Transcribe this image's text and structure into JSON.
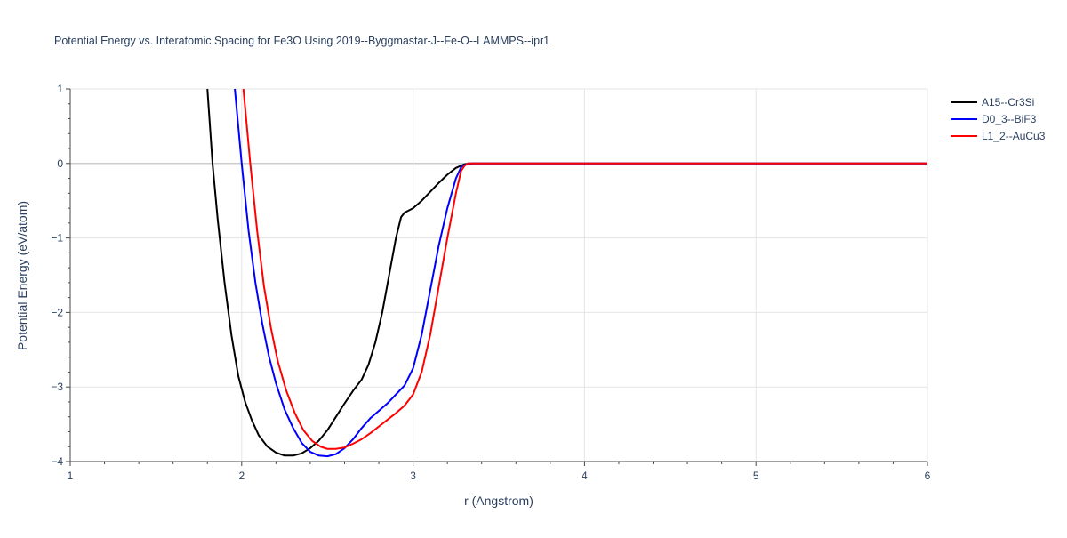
{
  "chart_data": {
    "type": "line",
    "title": "Potential Energy vs. Interatomic Spacing for Fe3O Using 2019--Byggmastar-J--Fe-O--LAMMPS--ipr1",
    "xlabel": "r (Angstrom)",
    "ylabel": "Potential Energy (eV/atom)",
    "xlim": [
      1,
      6
    ],
    "ylim": [
      -4,
      1
    ],
    "xticks": [
      1,
      2,
      3,
      4,
      5,
      6
    ],
    "yticks": [
      -4,
      -3,
      -2,
      -1,
      0,
      1
    ],
    "xtick_labels": [
      "1",
      "2",
      "3",
      "4",
      "5",
      "6"
    ],
    "ytick_labels": [
      "−4",
      "−3",
      "−2",
      "−1",
      "0",
      "1"
    ],
    "grid": true,
    "legend_position": "top-right",
    "series": [
      {
        "name": "A15--Cr3Si",
        "color": "#000000",
        "x": [
          1.8,
          1.83,
          1.86,
          1.9,
          1.94,
          1.98,
          2.02,
          2.06,
          2.1,
          2.15,
          2.2,
          2.25,
          2.3,
          2.35,
          2.4,
          2.45,
          2.5,
          2.55,
          2.6,
          2.65,
          2.7,
          2.74,
          2.78,
          2.82,
          2.86,
          2.9,
          2.93,
          2.95,
          3.0,
          3.05,
          3.1,
          3.15,
          3.2,
          3.25,
          3.3,
          3.35,
          3.4,
          4.0,
          5.0,
          6.0
        ],
        "y": [
          1.0,
          0.0,
          -0.75,
          -1.6,
          -2.3,
          -2.85,
          -3.2,
          -3.45,
          -3.65,
          -3.8,
          -3.88,
          -3.92,
          -3.92,
          -3.89,
          -3.82,
          -3.72,
          -3.58,
          -3.4,
          -3.22,
          -3.05,
          -2.9,
          -2.7,
          -2.4,
          -2.0,
          -1.5,
          -1.0,
          -0.72,
          -0.66,
          -0.6,
          -0.5,
          -0.38,
          -0.26,
          -0.15,
          -0.06,
          -0.01,
          0.0,
          0.0,
          0.0,
          0.0,
          0.0
        ]
      },
      {
        "name": "D0_3--BiF3",
        "color": "#0000ff",
        "x": [
          1.96,
          2.0,
          2.04,
          2.08,
          2.12,
          2.16,
          2.2,
          2.25,
          2.3,
          2.35,
          2.4,
          2.45,
          2.5,
          2.55,
          2.6,
          2.65,
          2.7,
          2.75,
          2.8,
          2.85,
          2.9,
          2.95,
          3.0,
          3.05,
          3.1,
          3.15,
          3.2,
          3.25,
          3.28,
          3.3,
          3.32,
          3.35,
          4.0,
          5.0,
          6.0
        ],
        "y": [
          1.0,
          0.0,
          -0.9,
          -1.6,
          -2.15,
          -2.6,
          -2.95,
          -3.3,
          -3.55,
          -3.75,
          -3.87,
          -3.92,
          -3.93,
          -3.9,
          -3.82,
          -3.7,
          -3.55,
          -3.42,
          -3.32,
          -3.22,
          -3.1,
          -2.98,
          -2.75,
          -2.3,
          -1.7,
          -1.1,
          -0.6,
          -0.2,
          -0.05,
          -0.02,
          0.0,
          0.0,
          0.0,
          0.0,
          0.0
        ]
      },
      {
        "name": "L1_2--AuCu3",
        "color": "#ff0000",
        "x": [
          2.01,
          2.05,
          2.09,
          2.13,
          2.17,
          2.21,
          2.26,
          2.31,
          2.36,
          2.41,
          2.46,
          2.5,
          2.55,
          2.6,
          2.65,
          2.7,
          2.75,
          2.8,
          2.85,
          2.9,
          2.95,
          3.0,
          3.05,
          3.1,
          3.15,
          3.2,
          3.25,
          3.28,
          3.3,
          3.32,
          3.35,
          4.0,
          5.0,
          6.0
        ],
        "y": [
          1.0,
          0.0,
          -0.9,
          -1.65,
          -2.2,
          -2.65,
          -3.05,
          -3.35,
          -3.58,
          -3.72,
          -3.8,
          -3.83,
          -3.83,
          -3.81,
          -3.76,
          -3.7,
          -3.62,
          -3.53,
          -3.44,
          -3.35,
          -3.25,
          -3.1,
          -2.8,
          -2.3,
          -1.65,
          -1.0,
          -0.4,
          -0.1,
          -0.03,
          0.0,
          0.0,
          0.0,
          0.0,
          0.0
        ]
      }
    ]
  }
}
